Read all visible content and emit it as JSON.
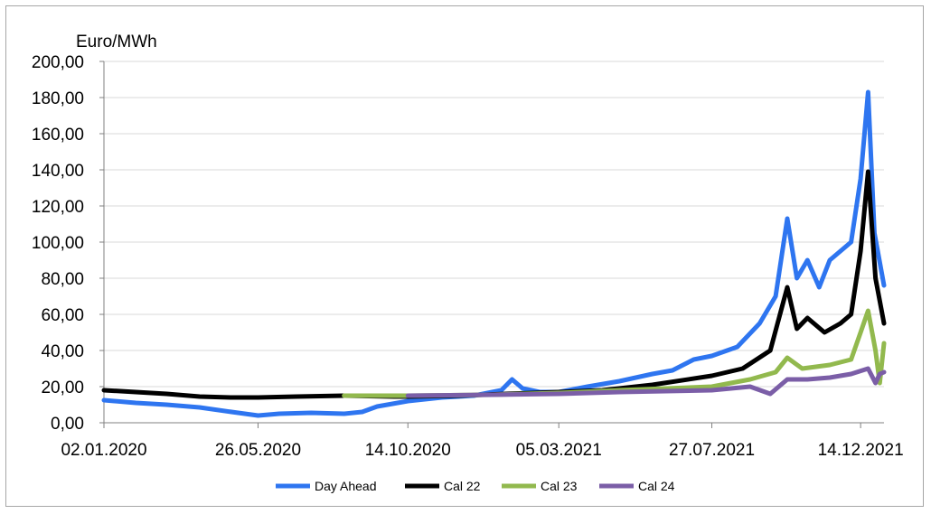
{
  "chart_data": {
    "type": "line",
    "ylabel": "Euro/MWh",
    "ylim": [
      0,
      200
    ],
    "yticks": [
      0,
      20,
      40,
      60,
      80,
      100,
      120,
      140,
      160,
      180,
      200
    ],
    "ytick_labels": [
      "0,00",
      "20,00",
      "40,00",
      "60,00",
      "80,00",
      "100,00",
      "120,00",
      "140,00",
      "160,00",
      "180,00",
      "200,00"
    ],
    "xlim": [
      "2020-01-02",
      "2022-01-05"
    ],
    "xticks": [
      "2020-01-02",
      "2020-05-26",
      "2020-10-14",
      "2021-03-05",
      "2021-07-27",
      "2021-12-14"
    ],
    "xtick_labels": [
      "02.01.2020",
      "26.05.2020",
      "14.10.2020",
      "05.03.2021",
      "27.07.2021",
      "14.12.2021"
    ],
    "grid": "horizontal",
    "legend_position": "bottom",
    "series": [
      {
        "name": "Day Ahead",
        "color": "#2e75f0",
        "points": [
          [
            "2020-01-02",
            12.5
          ],
          [
            "2020-02-01",
            11
          ],
          [
            "2020-03-01",
            10
          ],
          [
            "2020-04-01",
            8.5
          ],
          [
            "2020-05-01",
            6
          ],
          [
            "2020-05-26",
            4
          ],
          [
            "2020-06-15",
            5
          ],
          [
            "2020-07-15",
            5.5
          ],
          [
            "2020-08-15",
            5
          ],
          [
            "2020-09-01",
            6
          ],
          [
            "2020-09-15",
            9
          ],
          [
            "2020-10-14",
            12
          ],
          [
            "2020-11-15",
            14
          ],
          [
            "2020-12-15",
            15
          ],
          [
            "2021-01-10",
            18
          ],
          [
            "2021-01-20",
            24
          ],
          [
            "2021-01-30",
            19
          ],
          [
            "2021-02-15",
            17
          ],
          [
            "2021-03-05",
            17
          ],
          [
            "2021-04-01",
            20
          ],
          [
            "2021-05-01",
            23
          ],
          [
            "2021-06-01",
            27
          ],
          [
            "2021-06-20",
            29
          ],
          [
            "2021-07-10",
            35
          ],
          [
            "2021-07-27",
            37
          ],
          [
            "2021-08-20",
            42
          ],
          [
            "2021-09-10",
            55
          ],
          [
            "2021-09-25",
            70
          ],
          [
            "2021-10-06",
            113
          ],
          [
            "2021-10-15",
            80
          ],
          [
            "2021-10-25",
            90
          ],
          [
            "2021-11-05",
            75
          ],
          [
            "2021-11-15",
            90
          ],
          [
            "2021-11-25",
            95
          ],
          [
            "2021-12-05",
            100
          ],
          [
            "2021-12-14",
            135
          ],
          [
            "2021-12-21",
            183
          ],
          [
            "2021-12-27",
            105
          ],
          [
            "2022-01-05",
            76
          ]
        ]
      },
      {
        "name": "Cal 22",
        "color": "#000000",
        "points": [
          [
            "2020-01-02",
            18
          ],
          [
            "2020-02-01",
            17
          ],
          [
            "2020-03-01",
            16
          ],
          [
            "2020-04-01",
            14.5
          ],
          [
            "2020-05-01",
            14
          ],
          [
            "2020-05-26",
            14
          ],
          [
            "2020-07-01",
            14.5
          ],
          [
            "2020-08-15",
            15
          ],
          [
            "2020-10-01",
            14.5
          ],
          [
            "2020-10-14",
            14.5
          ],
          [
            "2020-12-01",
            15
          ],
          [
            "2021-01-15",
            16
          ],
          [
            "2021-03-05",
            17
          ],
          [
            "2021-04-15",
            18
          ],
          [
            "2021-06-01",
            21
          ],
          [
            "2021-07-27",
            26
          ],
          [
            "2021-08-25",
            30
          ],
          [
            "2021-09-20",
            40
          ],
          [
            "2021-10-06",
            75
          ],
          [
            "2021-10-15",
            52
          ],
          [
            "2021-10-25",
            58
          ],
          [
            "2021-11-10",
            50
          ],
          [
            "2021-11-25",
            55
          ],
          [
            "2021-12-05",
            60
          ],
          [
            "2021-12-14",
            95
          ],
          [
            "2021-12-21",
            139
          ],
          [
            "2021-12-28",
            80
          ],
          [
            "2022-01-05",
            55
          ]
        ]
      },
      {
        "name": "Cal 23",
        "color": "#92b94e",
        "points": [
          [
            "2020-08-15",
            15
          ],
          [
            "2020-10-14",
            15
          ],
          [
            "2021-01-01",
            15.5
          ],
          [
            "2021-03-05",
            16.5
          ],
          [
            "2021-05-01",
            18
          ],
          [
            "2021-07-27",
            20
          ],
          [
            "2021-09-01",
            24
          ],
          [
            "2021-09-25",
            28
          ],
          [
            "2021-10-06",
            36
          ],
          [
            "2021-10-20",
            30
          ],
          [
            "2021-11-15",
            32
          ],
          [
            "2021-12-05",
            35
          ],
          [
            "2021-12-14",
            50
          ],
          [
            "2021-12-21",
            62
          ],
          [
            "2021-12-28",
            40
          ],
          [
            "2022-01-01",
            22
          ],
          [
            "2022-01-05",
            44
          ]
        ]
      },
      {
        "name": "Cal 24",
        "color": "#7b5ea7",
        "points": [
          [
            "2020-10-14",
            15
          ],
          [
            "2021-01-01",
            15.5
          ],
          [
            "2021-03-05",
            16
          ],
          [
            "2021-05-01",
            17
          ],
          [
            "2021-07-27",
            18
          ],
          [
            "2021-09-01",
            20
          ],
          [
            "2021-09-20",
            16
          ],
          [
            "2021-10-06",
            24
          ],
          [
            "2021-10-25",
            24
          ],
          [
            "2021-11-15",
            25
          ],
          [
            "2021-12-05",
            27
          ],
          [
            "2021-12-21",
            30
          ],
          [
            "2021-12-28",
            22
          ],
          [
            "2022-01-01",
            27
          ],
          [
            "2022-01-05",
            28
          ]
        ]
      }
    ]
  }
}
